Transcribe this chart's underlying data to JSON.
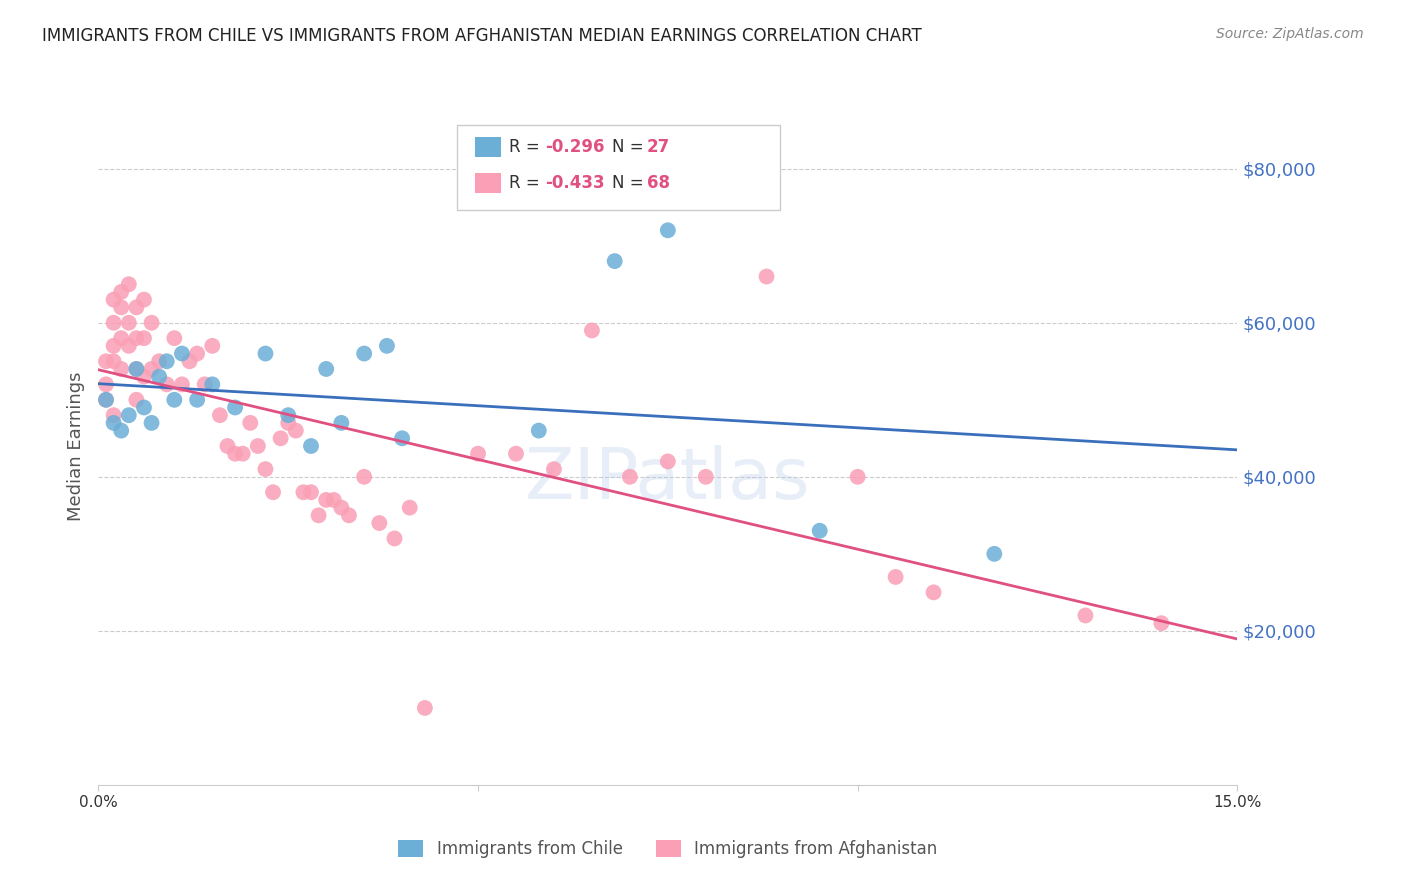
{
  "title": "IMMIGRANTS FROM CHILE VS IMMIGRANTS FROM AFGHANISTAN MEDIAN EARNINGS CORRELATION CHART",
  "source": "Source: ZipAtlas.com",
  "ylabel": "Median Earnings",
  "y_ticks": [
    20000,
    40000,
    60000,
    80000
  ],
  "y_tick_labels": [
    "$20,000",
    "$40,000",
    "$60,000",
    "$80,000"
  ],
  "x_min": 0.0,
  "x_max": 0.15,
  "y_min": 0,
  "y_max": 88000,
  "chile_color": "#6baed6",
  "afghanistan_color": "#fa9fb5",
  "blue_line_color": "#3a6fbc",
  "pink_line_color": "#e05080",
  "right_tick_color": "#4472c4",
  "watermark": "ZIPatlas",
  "legend_r1": "-0.296",
  "legend_n1": "27",
  "legend_r2": "-0.433",
  "legend_n2": "68",
  "chile_scatter_x": [
    0.001,
    0.002,
    0.003,
    0.004,
    0.005,
    0.006,
    0.007,
    0.008,
    0.009,
    0.01,
    0.011,
    0.013,
    0.015,
    0.018,
    0.022,
    0.025,
    0.028,
    0.03,
    0.032,
    0.035,
    0.038,
    0.04,
    0.058,
    0.068,
    0.075,
    0.095,
    0.118
  ],
  "chile_scatter_y": [
    50000,
    47000,
    46000,
    48000,
    54000,
    49000,
    47000,
    53000,
    55000,
    50000,
    56000,
    50000,
    52000,
    49000,
    56000,
    48000,
    44000,
    54000,
    47000,
    56000,
    57000,
    45000,
    46000,
    68000,
    72000,
    33000,
    30000
  ],
  "afghan_scatter_x": [
    0.001,
    0.001,
    0.001,
    0.002,
    0.002,
    0.002,
    0.002,
    0.002,
    0.003,
    0.003,
    0.003,
    0.003,
    0.004,
    0.004,
    0.004,
    0.005,
    0.005,
    0.005,
    0.005,
    0.006,
    0.006,
    0.006,
    0.007,
    0.007,
    0.008,
    0.009,
    0.01,
    0.011,
    0.012,
    0.013,
    0.014,
    0.015,
    0.016,
    0.017,
    0.018,
    0.019,
    0.02,
    0.021,
    0.022,
    0.023,
    0.024,
    0.025,
    0.026,
    0.027,
    0.028,
    0.029,
    0.03,
    0.031,
    0.032,
    0.033,
    0.035,
    0.037,
    0.039,
    0.041,
    0.043,
    0.05,
    0.055,
    0.06,
    0.065,
    0.07,
    0.075,
    0.08,
    0.088,
    0.1,
    0.105,
    0.11,
    0.13,
    0.14
  ],
  "afghan_scatter_y": [
    55000,
    52000,
    50000,
    63000,
    60000,
    57000,
    55000,
    48000,
    64000,
    62000,
    58000,
    54000,
    65000,
    60000,
    57000,
    62000,
    58000,
    54000,
    50000,
    63000,
    58000,
    53000,
    60000,
    54000,
    55000,
    52000,
    58000,
    52000,
    55000,
    56000,
    52000,
    57000,
    48000,
    44000,
    43000,
    43000,
    47000,
    44000,
    41000,
    38000,
    45000,
    47000,
    46000,
    38000,
    38000,
    35000,
    37000,
    37000,
    36000,
    35000,
    40000,
    34000,
    32000,
    36000,
    10000,
    43000,
    43000,
    41000,
    59000,
    40000,
    42000,
    40000,
    66000,
    40000,
    27000,
    25000,
    22000,
    21000
  ]
}
